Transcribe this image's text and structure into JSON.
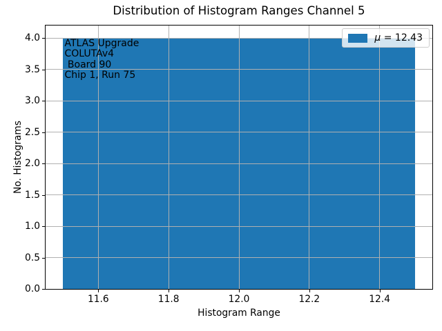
{
  "chart_data": {
    "type": "bar",
    "title": "Distribution of Histogram Ranges Channel 5",
    "xlabel": "Histogram Range",
    "ylabel": "No. Histograms",
    "xlim": [
      11.45,
      12.55
    ],
    "ylim": [
      0,
      4.2
    ],
    "xticks": {
      "values": [
        11.6,
        11.8,
        12.0,
        12.2,
        12.4
      ],
      "labels": [
        "11.6",
        "11.8",
        "12.0",
        "12.2",
        "12.4"
      ]
    },
    "yticks": {
      "values": [
        0.0,
        0.5,
        1.0,
        1.5,
        2.0,
        2.5,
        3.0,
        3.5,
        4.0
      ],
      "labels": [
        "0.0",
        "0.5",
        "1.0",
        "1.5",
        "2.0",
        "2.5",
        "3.0",
        "3.5",
        "4.0"
      ]
    },
    "grid": true,
    "grid_color": "#b0b0b0",
    "bar_color": "#1f77b4",
    "bars": [
      {
        "x_start": 11.5,
        "x_end": 12.5,
        "count": 4
      }
    ],
    "legend": {
      "position": "upper right",
      "entries": [
        {
          "symbol": "μ",
          "text": " = 12.43",
          "color": "#1f77b4"
        }
      ]
    },
    "annotation": {
      "x": 11.5,
      "y": 4.0,
      "lines": [
        "ATLAS Upgrade",
        "COLUTAv4",
        " Board 90",
        "Chip 1, Run 75"
      ]
    }
  }
}
